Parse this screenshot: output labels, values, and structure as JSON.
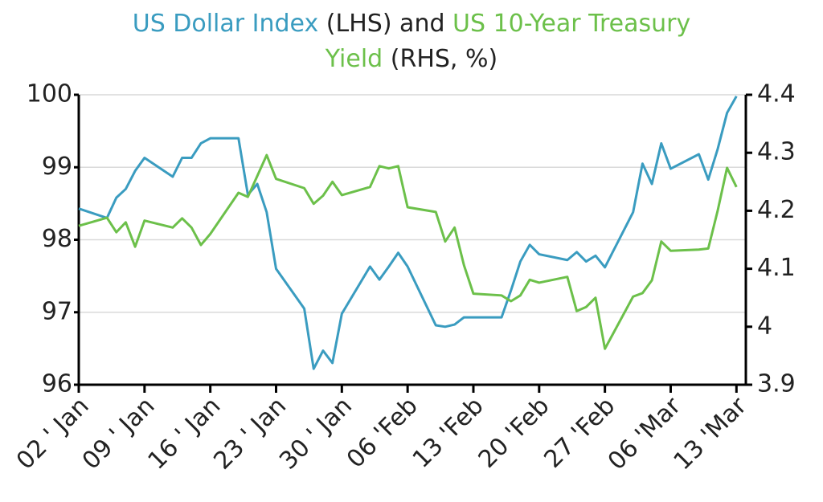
{
  "chart_data": {
    "type": "line",
    "title_lhs": "(LHS) and",
    "title_rhs": "(RHS, %)",
    "x": [
      0,
      3,
      4,
      5,
      6,
      7,
      10,
      11,
      12,
      13,
      14,
      17,
      18,
      19,
      20,
      21,
      24,
      25,
      26,
      27,
      28,
      31,
      32,
      33,
      34,
      35,
      38,
      39,
      40,
      41,
      42,
      45,
      46,
      47,
      48,
      49,
      52,
      53,
      54,
      55,
      56,
      59,
      60,
      61,
      62,
      63,
      66,
      67,
      68,
      69,
      70
    ],
    "xlim": [
      0,
      71
    ],
    "xticks": [
      {
        "value": 0,
        "label": "02 ' Jan"
      },
      {
        "value": 7,
        "label": "09 ' Jan"
      },
      {
        "value": 14,
        "label": "16 ' Jan"
      },
      {
        "value": 21,
        "label": "23 ' Jan"
      },
      {
        "value": 28,
        "label": "30 ' Jan"
      },
      {
        "value": 35,
        "label": "06 'Feb"
      },
      {
        "value": 42,
        "label": "13 'Feb"
      },
      {
        "value": 49,
        "label": "20 'Feb"
      },
      {
        "value": 56,
        "label": "27 'Feb"
      },
      {
        "value": 63,
        "label": "06 'Mar"
      },
      {
        "value": 70,
        "label": "13 'Mar"
      }
    ],
    "ylim": [
      96,
      100
    ],
    "yticks": [
      96,
      97,
      98,
      99,
      100
    ],
    "y2lim": [
      3.9,
      4.4
    ],
    "y2ticks": [
      3.9,
      4,
      4.1,
      4.2,
      4.3,
      4.4
    ],
    "grid": true,
    "series": [
      {
        "name": "US Dollar Index",
        "color": "#3a9cc0",
        "axis": "y",
        "values": [
          98.43,
          98.3,
          98.58,
          98.7,
          98.95,
          99.13,
          98.87,
          99.13,
          99.13,
          99.33,
          99.4,
          99.4,
          98.62,
          98.77,
          98.38,
          97.6,
          97.05,
          96.22,
          96.47,
          96.3,
          96.98,
          97.63,
          97.45,
          97.63,
          97.82,
          97.63,
          96.82,
          96.8,
          96.83,
          96.93,
          96.93,
          96.93,
          97.3,
          97.7,
          97.93,
          97.8,
          97.72,
          97.83,
          97.7,
          97.78,
          97.62,
          98.38,
          99.05,
          98.77,
          99.33,
          98.98,
          99.18,
          98.83,
          99.25,
          99.75,
          99.98
        ]
      },
      {
        "name": "US 10-Year Treasury Yield",
        "color": "#6cc04a",
        "axis": "y2",
        "values": [
          4.174,
          4.188,
          4.163,
          4.18,
          4.138,
          4.183,
          4.171,
          4.187,
          4.171,
          4.141,
          4.16,
          4.231,
          4.224,
          4.26,
          4.296,
          4.255,
          4.239,
          4.212,
          4.226,
          4.25,
          4.227,
          4.241,
          4.277,
          4.273,
          4.277,
          4.206,
          4.198,
          4.147,
          4.171,
          4.106,
          4.057,
          4.054,
          4.044,
          4.054,
          4.081,
          4.076,
          4.086,
          4.027,
          4.034,
          4.05,
          3.962,
          4.052,
          4.058,
          4.08,
          4.147,
          4.131,
          4.133,
          4.135,
          4.2,
          4.274,
          4.241
        ]
      }
    ]
  }
}
